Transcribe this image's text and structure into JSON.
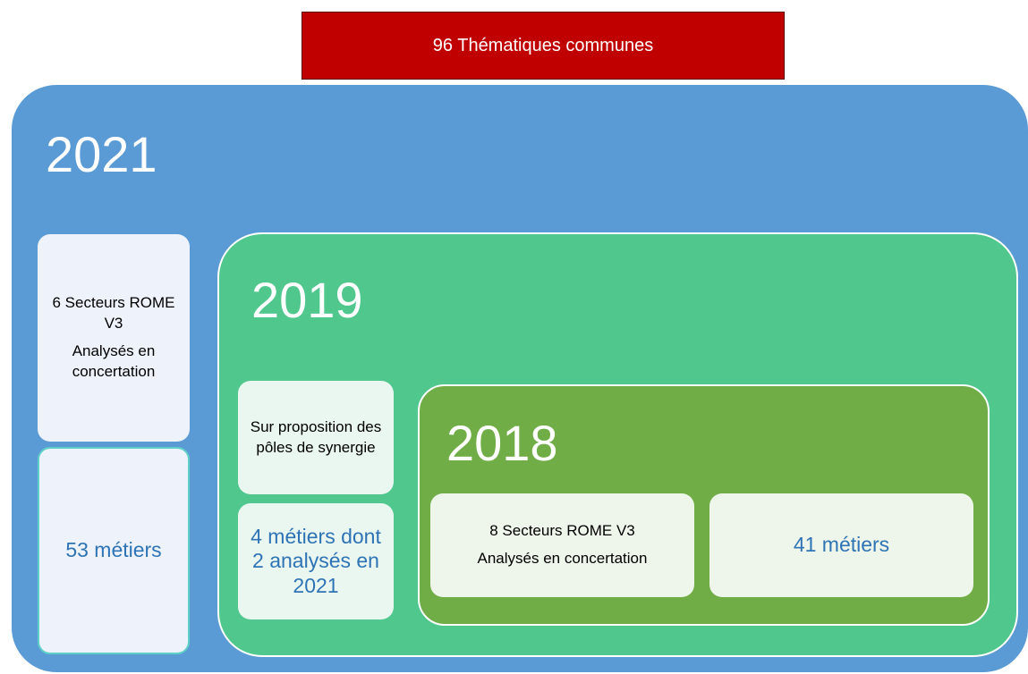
{
  "header": {
    "title": "96 Thématiques communes"
  },
  "outer": {
    "year": "2021",
    "boxes": [
      {
        "lines": [
          "6 Secteurs ROME V3",
          "Analysés en concertation"
        ]
      },
      {
        "lines": [
          "53 métiers"
        ]
      }
    ]
  },
  "middle": {
    "year": "2019",
    "boxes": [
      {
        "lines": [
          "Sur proposition des pôles de synergie"
        ]
      },
      {
        "lines": [
          "4 métiers dont 2 analysés en 2021"
        ]
      }
    ]
  },
  "inner": {
    "year": "2018",
    "boxes": [
      {
        "lines": [
          "8 Secteurs ROME V3",
          "Analysés en concertation"
        ]
      },
      {
        "lines": [
          "41 métiers"
        ]
      }
    ]
  }
}
